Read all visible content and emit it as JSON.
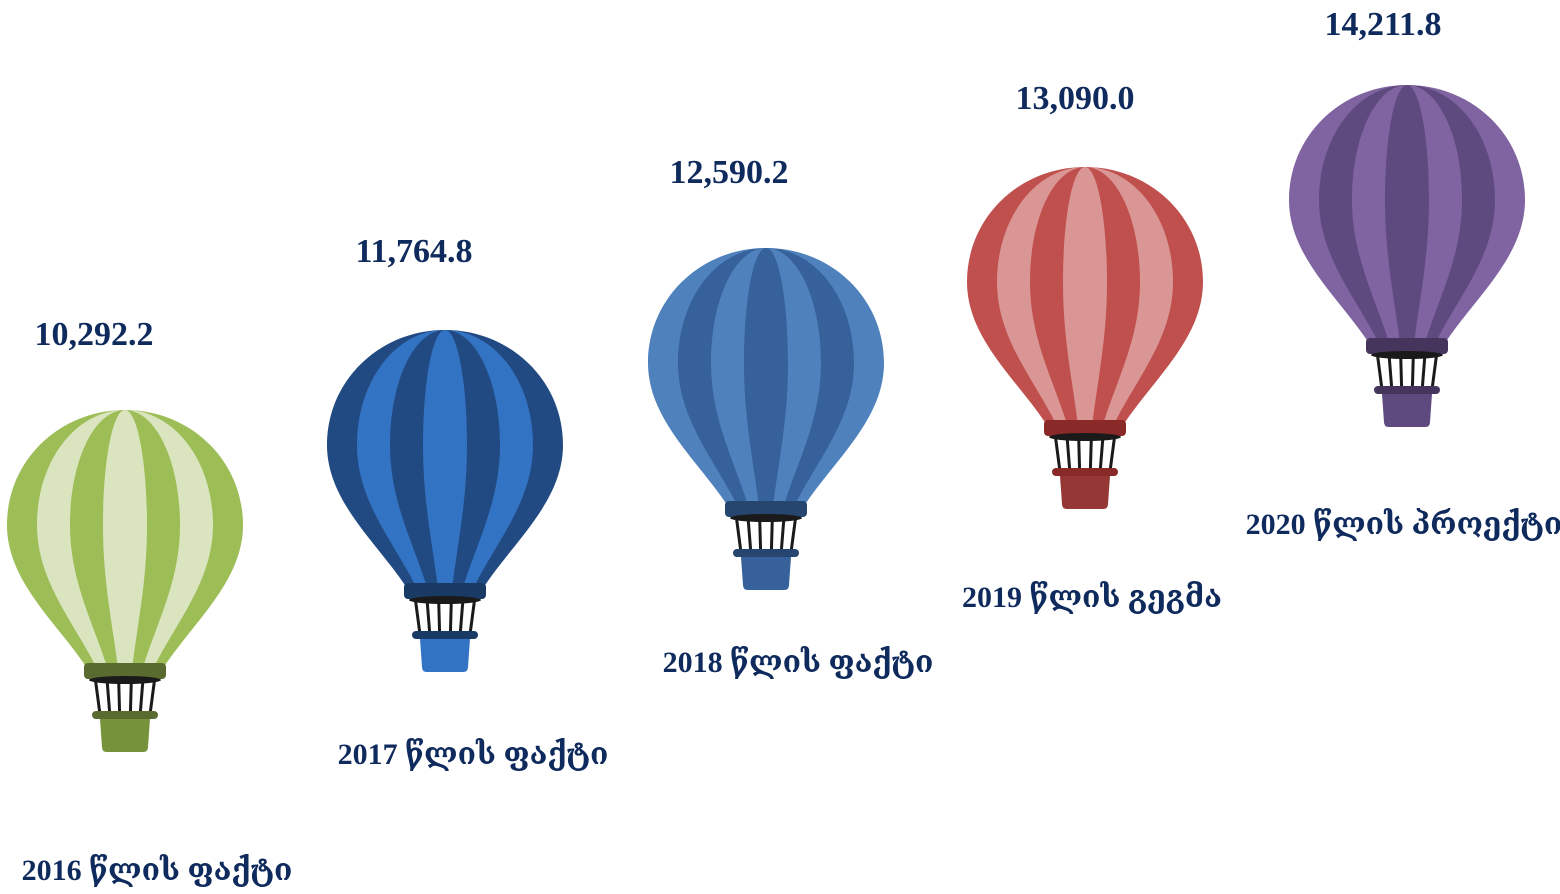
{
  "items": [
    {
      "value": "10,292.2",
      "label": "2016 წლის ფაქტი"
    },
    {
      "value": "11,764.8",
      "label": "2017 წლის ფაქტი"
    },
    {
      "value": "12,590.2",
      "label": "2018 წლის ფაქტი"
    },
    {
      "value": "13,090.0",
      "label": "2019 წლის გეგმა"
    },
    {
      "value": "14,211.8",
      "label": "2020 წლის პროექტი"
    }
  ]
}
